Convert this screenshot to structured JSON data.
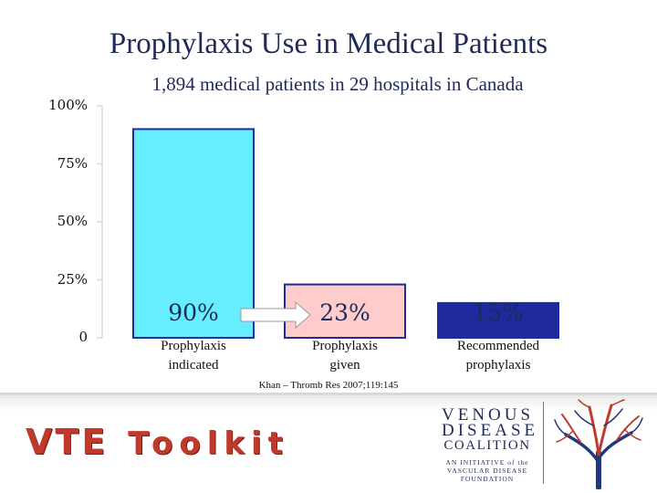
{
  "slide": {
    "title": "Prophylaxis Use in Medical Patients",
    "subtitle": "1,894 medical patients in 29 hospitals in Canada",
    "citation": "Khan – Thromb Res 2007;119:145"
  },
  "chart_data": {
    "type": "bar",
    "categories": [
      "Prophylaxis\nindicated",
      "Prophylaxis\ngiven",
      "Recommended\nprophylaxis"
    ],
    "values": [
      90,
      23,
      15
    ],
    "data_labels": [
      "90%",
      "23%",
      "15%"
    ],
    "colors": [
      "#66eeff",
      "#ffcccc",
      "#1f2a9c"
    ],
    "yticks": [
      "0",
      "25%",
      "50%",
      "75%",
      "100%"
    ],
    "ylim": [
      0,
      100
    ],
    "grid": false,
    "arrow": {
      "from": "Prophylaxis\nindicated",
      "to": "Prophylaxis\ngiven"
    }
  },
  "footer": {
    "toolkit_vte": "VTE",
    "toolkit_word": "Toolkit",
    "logo": {
      "line1": "VENOUS",
      "line2": "DISEASE",
      "line3": "COALITION",
      "line4": "AN INITIATIVE of the",
      "line5": "VASCULAR DISEASE",
      "line6": "FOUNDATION"
    },
    "brand_red": "#c0392b",
    "brand_navy": "#1f2a5a"
  }
}
